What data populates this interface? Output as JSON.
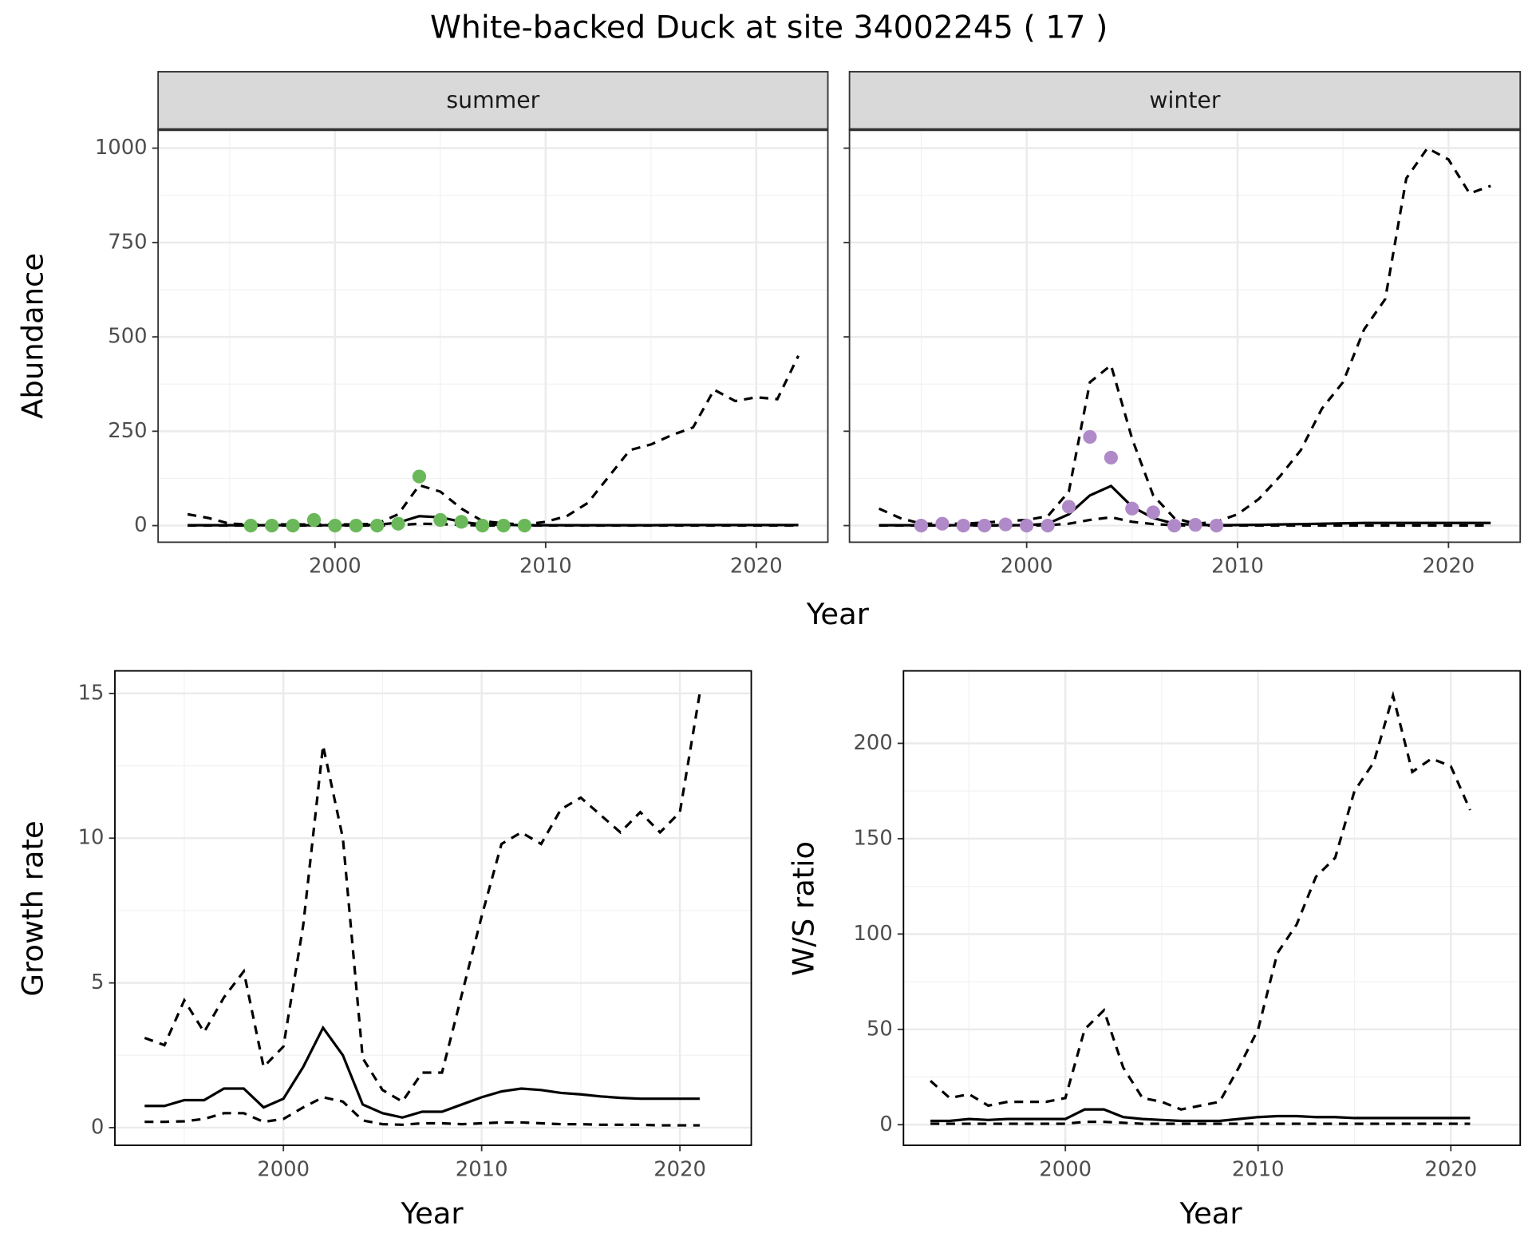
{
  "title": "White-backed Duck at site 34002245 ( 17 )",
  "chart_data": [
    {
      "type": "line",
      "facet": "summer",
      "xlabel": "Year",
      "ylabel": "Abundance",
      "xlim": [
        1991.6,
        2023.4
      ],
      "ylim": [
        -44,
        1049
      ],
      "xticks": [
        2000,
        2010,
        2020
      ],
      "yticks": [
        0,
        250,
        500,
        750,
        1000
      ],
      "grid": true,
      "x": [
        1993,
        1994,
        1995,
        1996,
        1997,
        1998,
        1999,
        2000,
        2001,
        2002,
        2003,
        2004,
        2005,
        2006,
        2007,
        2008,
        2009,
        2010,
        2011,
        2012,
        2013,
        2014,
        2015,
        2016,
        2017,
        2018,
        2019,
        2020,
        2021,
        2022
      ],
      "series": [
        {
          "color": "#000000",
          "dash": false,
          "values": [
            1,
            1,
            1,
            1,
            1,
            1,
            1,
            1,
            1,
            2,
            8,
            25,
            22,
            10,
            3,
            2,
            1,
            1,
            1,
            1,
            1,
            1,
            1,
            1.5,
            1.5,
            1.5,
            1.5,
            1.5,
            1.5,
            1.5
          ]
        },
        {
          "color": "#000000",
          "dash": true,
          "values": [
            30,
            20,
            5,
            3,
            3,
            3,
            3,
            3,
            3,
            5,
            30,
            107,
            90,
            45,
            12,
            6,
            3,
            10,
            25,
            60,
            130,
            200,
            215,
            240,
            260,
            360,
            330,
            340,
            335,
            450
          ]
        },
        {
          "color": "#000000",
          "dash": true,
          "values": [
            0,
            0,
            0,
            0,
            0,
            0,
            0,
            0,
            0,
            0,
            1,
            5,
            4,
            2,
            0,
            0,
            0,
            0,
            0,
            0,
            0,
            0,
            0,
            0,
            0,
            0,
            0,
            0,
            0,
            0
          ]
        }
      ],
      "points": {
        "color": "#6ab85a",
        "x": [
          1996,
          1997,
          1998,
          1999,
          2000,
          2001,
          2002,
          2003,
          2004,
          2005,
          2006,
          2007,
          2008,
          2009
        ],
        "values": [
          0,
          0,
          0,
          15,
          0,
          0,
          0,
          5,
          130,
          15,
          10,
          0,
          0,
          0
        ]
      }
    },
    {
      "type": "line",
      "facet": "winter",
      "xlim": [
        1991.6,
        2023.4
      ],
      "ylim": [
        -44,
        1049
      ],
      "xticks": [
        2000,
        2010,
        2020
      ],
      "yticks": [
        0,
        250,
        500,
        750,
        1000
      ],
      "grid": true,
      "x": [
        1993,
        1994,
        1995,
        1996,
        1997,
        1998,
        1999,
        2000,
        2001,
        2002,
        2003,
        2004,
        2005,
        2006,
        2007,
        2008,
        2009,
        2010,
        2011,
        2012,
        2013,
        2014,
        2015,
        2016,
        2017,
        2018,
        2019,
        2020,
        2021,
        2022
      ],
      "series": [
        {
          "color": "#000000",
          "dash": false,
          "values": [
            1,
            1,
            1,
            1,
            1,
            1,
            1,
            1,
            5,
            30,
            80,
            105,
            50,
            20,
            5,
            2,
            1,
            1.5,
            2,
            3,
            4,
            5,
            6,
            7,
            7,
            7,
            7,
            7,
            7,
            7
          ]
        },
        {
          "color": "#000000",
          "dash": true,
          "values": [
            45,
            20,
            5,
            5,
            5,
            8,
            12,
            15,
            25,
            90,
            380,
            425,
            230,
            80,
            20,
            5,
            10,
            30,
            70,
            130,
            200,
            310,
            380,
            520,
            600,
            920,
            1000,
            970,
            880,
            900
          ]
        },
        {
          "color": "#000000",
          "dash": true,
          "values": [
            0,
            0,
            0,
            0,
            0,
            0,
            0,
            0,
            1,
            5,
            15,
            22,
            10,
            4,
            1,
            0,
            0,
            0,
            0,
            0,
            0,
            0,
            0,
            0,
            0,
            0,
            0,
            0,
            0,
            0
          ]
        }
      ],
      "points": {
        "color": "#b08ac8",
        "x": [
          1995,
          1996,
          1997,
          1998,
          1999,
          2000,
          2001,
          2002,
          2003,
          2004,
          2005,
          2006,
          2007,
          2008,
          2009
        ],
        "values": [
          0,
          5,
          0,
          0,
          3,
          0,
          0,
          50,
          235,
          180,
          45,
          35,
          0,
          2,
          0
        ]
      }
    },
    {
      "type": "line",
      "xlabel": "Year",
      "ylabel": "Growth rate",
      "xlim": [
        1991.5,
        2023.6
      ],
      "ylim": [
        -0.61,
        15.78
      ],
      "xticks": [
        2000,
        2010,
        2020
      ],
      "yticks": [
        0,
        5,
        10,
        15
      ],
      "grid": true,
      "x": [
        1993,
        1994,
        1995,
        1996,
        1997,
        1998,
        1999,
        2000,
        2001,
        2002,
        2003,
        2004,
        2005,
        2006,
        2007,
        2008,
        2009,
        2010,
        2011,
        2012,
        2013,
        2014,
        2015,
        2016,
        2017,
        2018,
        2019,
        2020,
        2021
      ],
      "series": [
        {
          "color": "#000000",
          "dash": false,
          "values": [
            0.75,
            0.75,
            0.95,
            0.95,
            1.35,
            1.35,
            0.7,
            1.0,
            2.1,
            3.45,
            2.5,
            0.8,
            0.5,
            0.35,
            0.55,
            0.55,
            0.8,
            1.05,
            1.25,
            1.35,
            1.3,
            1.2,
            1.15,
            1.08,
            1.03,
            1.0,
            1.0,
            1.0,
            1.0
          ]
        },
        {
          "color": "#000000",
          "dash": true,
          "values": [
            3.1,
            2.85,
            4.4,
            3.3,
            4.5,
            5.4,
            2.1,
            2.8,
            7.0,
            13.2,
            10.0,
            2.4,
            1.3,
            0.9,
            1.9,
            1.9,
            4.6,
            7.3,
            9.8,
            10.2,
            9.8,
            11.0,
            11.4,
            10.8,
            10.2,
            10.9,
            10.2,
            10.9,
            15.0
          ]
        },
        {
          "color": "#000000",
          "dash": true,
          "values": [
            0.2,
            0.2,
            0.22,
            0.3,
            0.5,
            0.5,
            0.2,
            0.3,
            0.7,
            1.05,
            0.9,
            0.25,
            0.12,
            0.1,
            0.15,
            0.15,
            0.12,
            0.15,
            0.18,
            0.18,
            0.15,
            0.12,
            0.12,
            0.1,
            0.1,
            0.1,
            0.08,
            0.08,
            0.08
          ]
        }
      ]
    },
    {
      "type": "line",
      "xlabel": "Year",
      "ylabel": "W/S ratio",
      "xlim": [
        1991.6,
        2023.6
      ],
      "ylim": [
        -10.8,
        238
      ],
      "xticks": [
        2000,
        2010,
        2020
      ],
      "yticks": [
        0,
        50,
        100,
        150,
        200
      ],
      "grid": true,
      "x": [
        1993,
        1994,
        1995,
        1996,
        1997,
        1998,
        1999,
        2000,
        2001,
        2002,
        2003,
        2004,
        2005,
        2006,
        2007,
        2008,
        2009,
        2010,
        2011,
        2012,
        2013,
        2014,
        2015,
        2016,
        2017,
        2018,
        2019,
        2020,
        2021
      ],
      "series": [
        {
          "color": "#000000",
          "dash": false,
          "values": [
            2,
            2,
            3,
            2.5,
            3,
            3,
            3,
            3,
            8,
            8,
            4,
            3,
            2.5,
            2,
            2,
            2,
            3,
            4,
            4.5,
            4.5,
            4,
            4,
            3.5,
            3.5,
            3.5,
            3.5,
            3.5,
            3.5,
            3.5
          ]
        },
        {
          "color": "#000000",
          "dash": true,
          "values": [
            23,
            14,
            16,
            10,
            12,
            12,
            12,
            14,
            50,
            60,
            30,
            14,
            12,
            8,
            10,
            12,
            30,
            50,
            90,
            105,
            130,
            140,
            175,
            190,
            225,
            185,
            192,
            188,
            165
          ]
        },
        {
          "color": "#000000",
          "dash": true,
          "values": [
            0.5,
            0.5,
            0.5,
            0.5,
            0.5,
            0.5,
            0.5,
            0.5,
            1.5,
            1.5,
            1,
            0.5,
            0.5,
            0.5,
            0.5,
            0.5,
            0.5,
            0.5,
            0.5,
            0.5,
            0.5,
            0.5,
            0.5,
            0.5,
            0.5,
            0.5,
            0.5,
            0.5,
            0.5
          ]
        }
      ]
    }
  ]
}
